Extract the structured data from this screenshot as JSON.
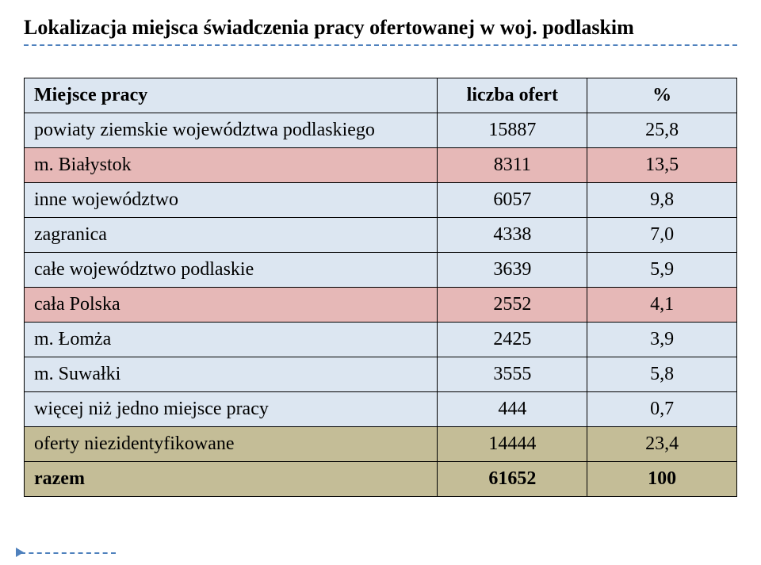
{
  "title": "Lokalizacja miejsca świadczenia pracy ofertowanej w woj. podlaskim",
  "colors": {
    "divider": "#4f81bd",
    "header_bg": "#dce6f1",
    "row_blue": "#dce6f1",
    "row_pink": "#e6b8b7",
    "row_tan": "#c4bd97",
    "border": "#000000",
    "text": "#000000"
  },
  "table": {
    "headers": [
      "Miejsce pracy",
      "liczba ofert",
      "%"
    ],
    "rows": [
      {
        "label": "powiaty ziemskie województwa podlaskiego",
        "count": "15887",
        "pct": "25,8",
        "bg": "#dce6f1"
      },
      {
        "label": "m. Białystok",
        "count": "8311",
        "pct": "13,5",
        "bg": "#e6b8b7"
      },
      {
        "label": "inne województwo",
        "count": "6057",
        "pct": "9,8",
        "bg": "#dce6f1"
      },
      {
        "label": "zagranica",
        "count": "4338",
        "pct": "7,0",
        "bg": "#dce6f1"
      },
      {
        "label": "całe województwo podlaskie",
        "count": "3639",
        "pct": "5,9",
        "bg": "#dce6f1"
      },
      {
        "label": "cała Polska",
        "count": "2552",
        "pct": "4,1",
        "bg": "#e6b8b7"
      },
      {
        "label": "m. Łomża",
        "count": "2425",
        "pct": "3,9",
        "bg": "#dce6f1"
      },
      {
        "label": "m. Suwałki",
        "count": "3555",
        "pct": "5,8",
        "bg": "#dce6f1"
      },
      {
        "label": "więcej niż jedno miejsce pracy",
        "count": "444",
        "pct": "0,7",
        "bg": "#dce6f1"
      },
      {
        "label": "oferty niezidentyfikowane",
        "count": "14444",
        "pct": "23,4",
        "bg": "#c4bd97"
      },
      {
        "label": "razem",
        "count": "61652",
        "pct": "100",
        "bg": "#c4bd97",
        "bold": true
      }
    ]
  }
}
